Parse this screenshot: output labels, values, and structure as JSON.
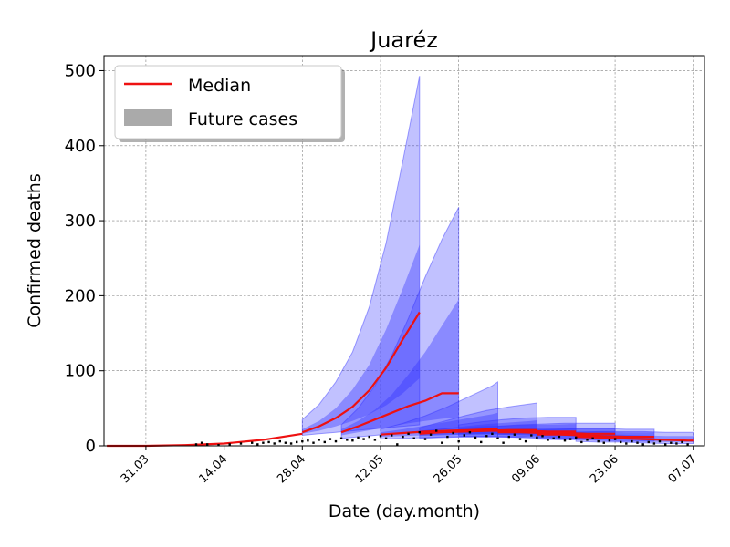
{
  "chart_data": {
    "type": "area",
    "title": "Juaréz",
    "xlabel": "Date (day.month)",
    "ylabel": "Confirmed deaths",
    "x_ticks": [
      "31.03",
      "14.04",
      "28.04",
      "12.05",
      "26.05",
      "09.06",
      "23.06",
      "07.07"
    ],
    "x_tick_days": [
      0,
      14,
      28,
      42,
      56,
      70,
      84,
      98
    ],
    "xlim_days": [
      -7.5,
      100
    ],
    "ylim": [
      0,
      520
    ],
    "y_ticks": [
      0,
      100,
      200,
      300,
      400,
      500
    ],
    "grid": true,
    "legend": {
      "placement": "top-left",
      "entries": [
        {
          "label": "Median",
          "kind": "line",
          "color": "#ee1111"
        },
        {
          "label": "Future cases",
          "kind": "patch",
          "color": "#aaaaaa"
        }
      ]
    },
    "colors": {
      "band": "#3333ff",
      "median": "#ee1111",
      "observed": "#000000"
    },
    "observed": {
      "days": [
        9,
        10,
        11,
        13,
        15,
        17,
        19,
        20,
        21,
        22,
        23,
        24,
        25,
        26,
        27,
        28,
        29,
        30,
        31,
        32,
        33,
        34,
        35,
        36,
        37,
        38,
        39,
        40,
        41,
        42,
        43,
        44,
        45,
        46,
        47,
        48,
        49,
        50,
        51,
        52,
        53,
        54,
        55,
        56,
        57,
        58,
        59,
        60,
        61,
        62,
        63,
        64,
        65,
        66,
        67,
        68,
        69,
        70,
        71,
        72,
        73,
        74,
        75,
        76,
        77,
        78,
        79,
        80,
        81,
        82,
        83,
        84,
        85,
        86,
        87,
        88,
        89,
        90,
        91,
        92,
        93,
        94,
        95,
        96,
        97
      ],
      "values": [
        2,
        4,
        2,
        1,
        2,
        3,
        4,
        2,
        4,
        5,
        3,
        6,
        4,
        3,
        5,
        6,
        7,
        4,
        8,
        5,
        9,
        6,
        10,
        8,
        7,
        11,
        9,
        12,
        8,
        13,
        10,
        14,
        2,
        12,
        16,
        10,
        18,
        9,
        15,
        20,
        4,
        12,
        17,
        6,
        14,
        18,
        11,
        5,
        13,
        16,
        10,
        4,
        12,
        15,
        9,
        6,
        14,
        11,
        13,
        8,
        10,
        12,
        7,
        9,
        11,
        5,
        8,
        10,
        6,
        4,
        7,
        9,
        5,
        3,
        6,
        4,
        2,
        5,
        3,
        6,
        2,
        4,
        3,
        5,
        2
      ]
    },
    "forecasts": [
      {
        "start_day": 28,
        "days": [
          28,
          31,
          34,
          37,
          40,
          43,
          46,
          49
        ],
        "median": [
          18,
          26,
          37,
          52,
          74,
          104,
          142,
          178
        ],
        "inner_lo": [
          16,
          20,
          26,
          33,
          42,
          54,
          70,
          90
        ],
        "inner_hi": [
          22,
          33,
          50,
          75,
          108,
          155,
          210,
          268
        ],
        "outer_lo": [
          14,
          16,
          18,
          20,
          22,
          24,
          26,
          28
        ],
        "outer_hi": [
          35,
          55,
          85,
          125,
          185,
          270,
          380,
          493
        ]
      },
      {
        "start_day": 35,
        "days": [
          35,
          38,
          41,
          44,
          47,
          50,
          53,
          56
        ],
        "median": [
          18,
          26,
          35,
          44,
          53,
          60,
          70,
          70
        ],
        "inner_lo": [
          14,
          18,
          22,
          26,
          30,
          33,
          36,
          38
        ],
        "inner_hi": [
          22,
          33,
          48,
          68,
          95,
          125,
          160,
          195
        ],
        "outer_lo": [
          10,
          12,
          14,
          16,
          18,
          20,
          22,
          24
        ],
        "outer_hi": [
          28,
          50,
          80,
          120,
          170,
          225,
          275,
          318
        ]
      },
      {
        "start_day": 42,
        "days": [
          42,
          46,
          50,
          54,
          58,
          62,
          63
        ],
        "median": [
          15,
          17,
          19,
          20,
          21,
          22,
          22
        ],
        "inner_lo": [
          12,
          13,
          14,
          15,
          15,
          16,
          16
        ],
        "inner_hi": [
          18,
          22,
          27,
          32,
          37,
          42,
          44
        ],
        "outer_lo": [
          9,
          10,
          11,
          12,
          12,
          13,
          13
        ],
        "outer_hi": [
          22,
          30,
          40,
          52,
          66,
          80,
          85
        ]
      },
      {
        "start_day": 49,
        "days": [
          49,
          53,
          57,
          61,
          65,
          69,
          70
        ],
        "median": [
          16,
          18,
          19,
          20,
          21,
          21,
          21
        ],
        "inner_lo": [
          13,
          14,
          15,
          15,
          15,
          16,
          16
        ],
        "inner_hi": [
          20,
          23,
          26,
          29,
          31,
          33,
          34
        ],
        "outer_lo": [
          10,
          11,
          12,
          12,
          12,
          13,
          13
        ],
        "outer_hi": [
          24,
          32,
          40,
          47,
          52,
          56,
          57
        ]
      },
      {
        "start_day": 56,
        "days": [
          56,
          60,
          64,
          68,
          72,
          76,
          77
        ],
        "median": [
          20,
          20,
          20,
          20,
          19,
          19,
          19
        ],
        "inner_lo": [
          16,
          16,
          15,
          15,
          14,
          14,
          14
        ],
        "inner_hi": [
          24,
          26,
          27,
          28,
          28,
          29,
          29
        ],
        "outer_lo": [
          13,
          12,
          12,
          11,
          11,
          10,
          10
        ],
        "outer_hi": [
          28,
          32,
          35,
          37,
          38,
          38,
          38
        ]
      },
      {
        "start_day": 63,
        "days": [
          63,
          67,
          71,
          75,
          79,
          83,
          84
        ],
        "median": [
          18,
          18,
          17,
          17,
          16,
          16,
          16
        ],
        "inner_lo": [
          15,
          14,
          13,
          13,
          12,
          12,
          12
        ],
        "inner_hi": [
          22,
          23,
          24,
          24,
          24,
          24,
          24
        ],
        "outer_lo": [
          12,
          11,
          10,
          10,
          9,
          9,
          9
        ],
        "outer_hi": [
          26,
          28,
          29,
          30,
          30,
          30,
          30
        ]
      },
      {
        "start_day": 70,
        "days": [
          70,
          74,
          78,
          82,
          86,
          90,
          91
        ],
        "median": [
          15,
          15,
          14,
          13,
          12,
          12,
          12
        ],
        "inner_lo": [
          12,
          11,
          10,
          10,
          9,
          9,
          9
        ],
        "inner_hi": [
          18,
          19,
          19,
          19,
          18,
          18,
          18
        ],
        "outer_lo": [
          9,
          8,
          8,
          7,
          6,
          6,
          6
        ],
        "outer_hi": [
          21,
          22,
          23,
          23,
          22,
          22,
          22
        ]
      },
      {
        "start_day": 77,
        "days": [
          77,
          81,
          85,
          89,
          93,
          97,
          98
        ],
        "median": [
          12,
          11,
          10,
          9,
          8,
          7,
          7
        ],
        "inner_lo": [
          9,
          8,
          7,
          6,
          5,
          5,
          5
        ],
        "inner_hi": [
          15,
          15,
          15,
          14,
          13,
          13,
          13
        ],
        "outer_lo": [
          6,
          5,
          5,
          4,
          3,
          3,
          3
        ],
        "outer_hi": [
          18,
          19,
          19,
          19,
          18,
          18,
          18
        ]
      }
    ],
    "early_median": {
      "days": [
        -7,
        0,
        7,
        14,
        21,
        28
      ],
      "values": [
        0,
        0,
        1,
        3,
        8,
        16
      ]
    }
  }
}
